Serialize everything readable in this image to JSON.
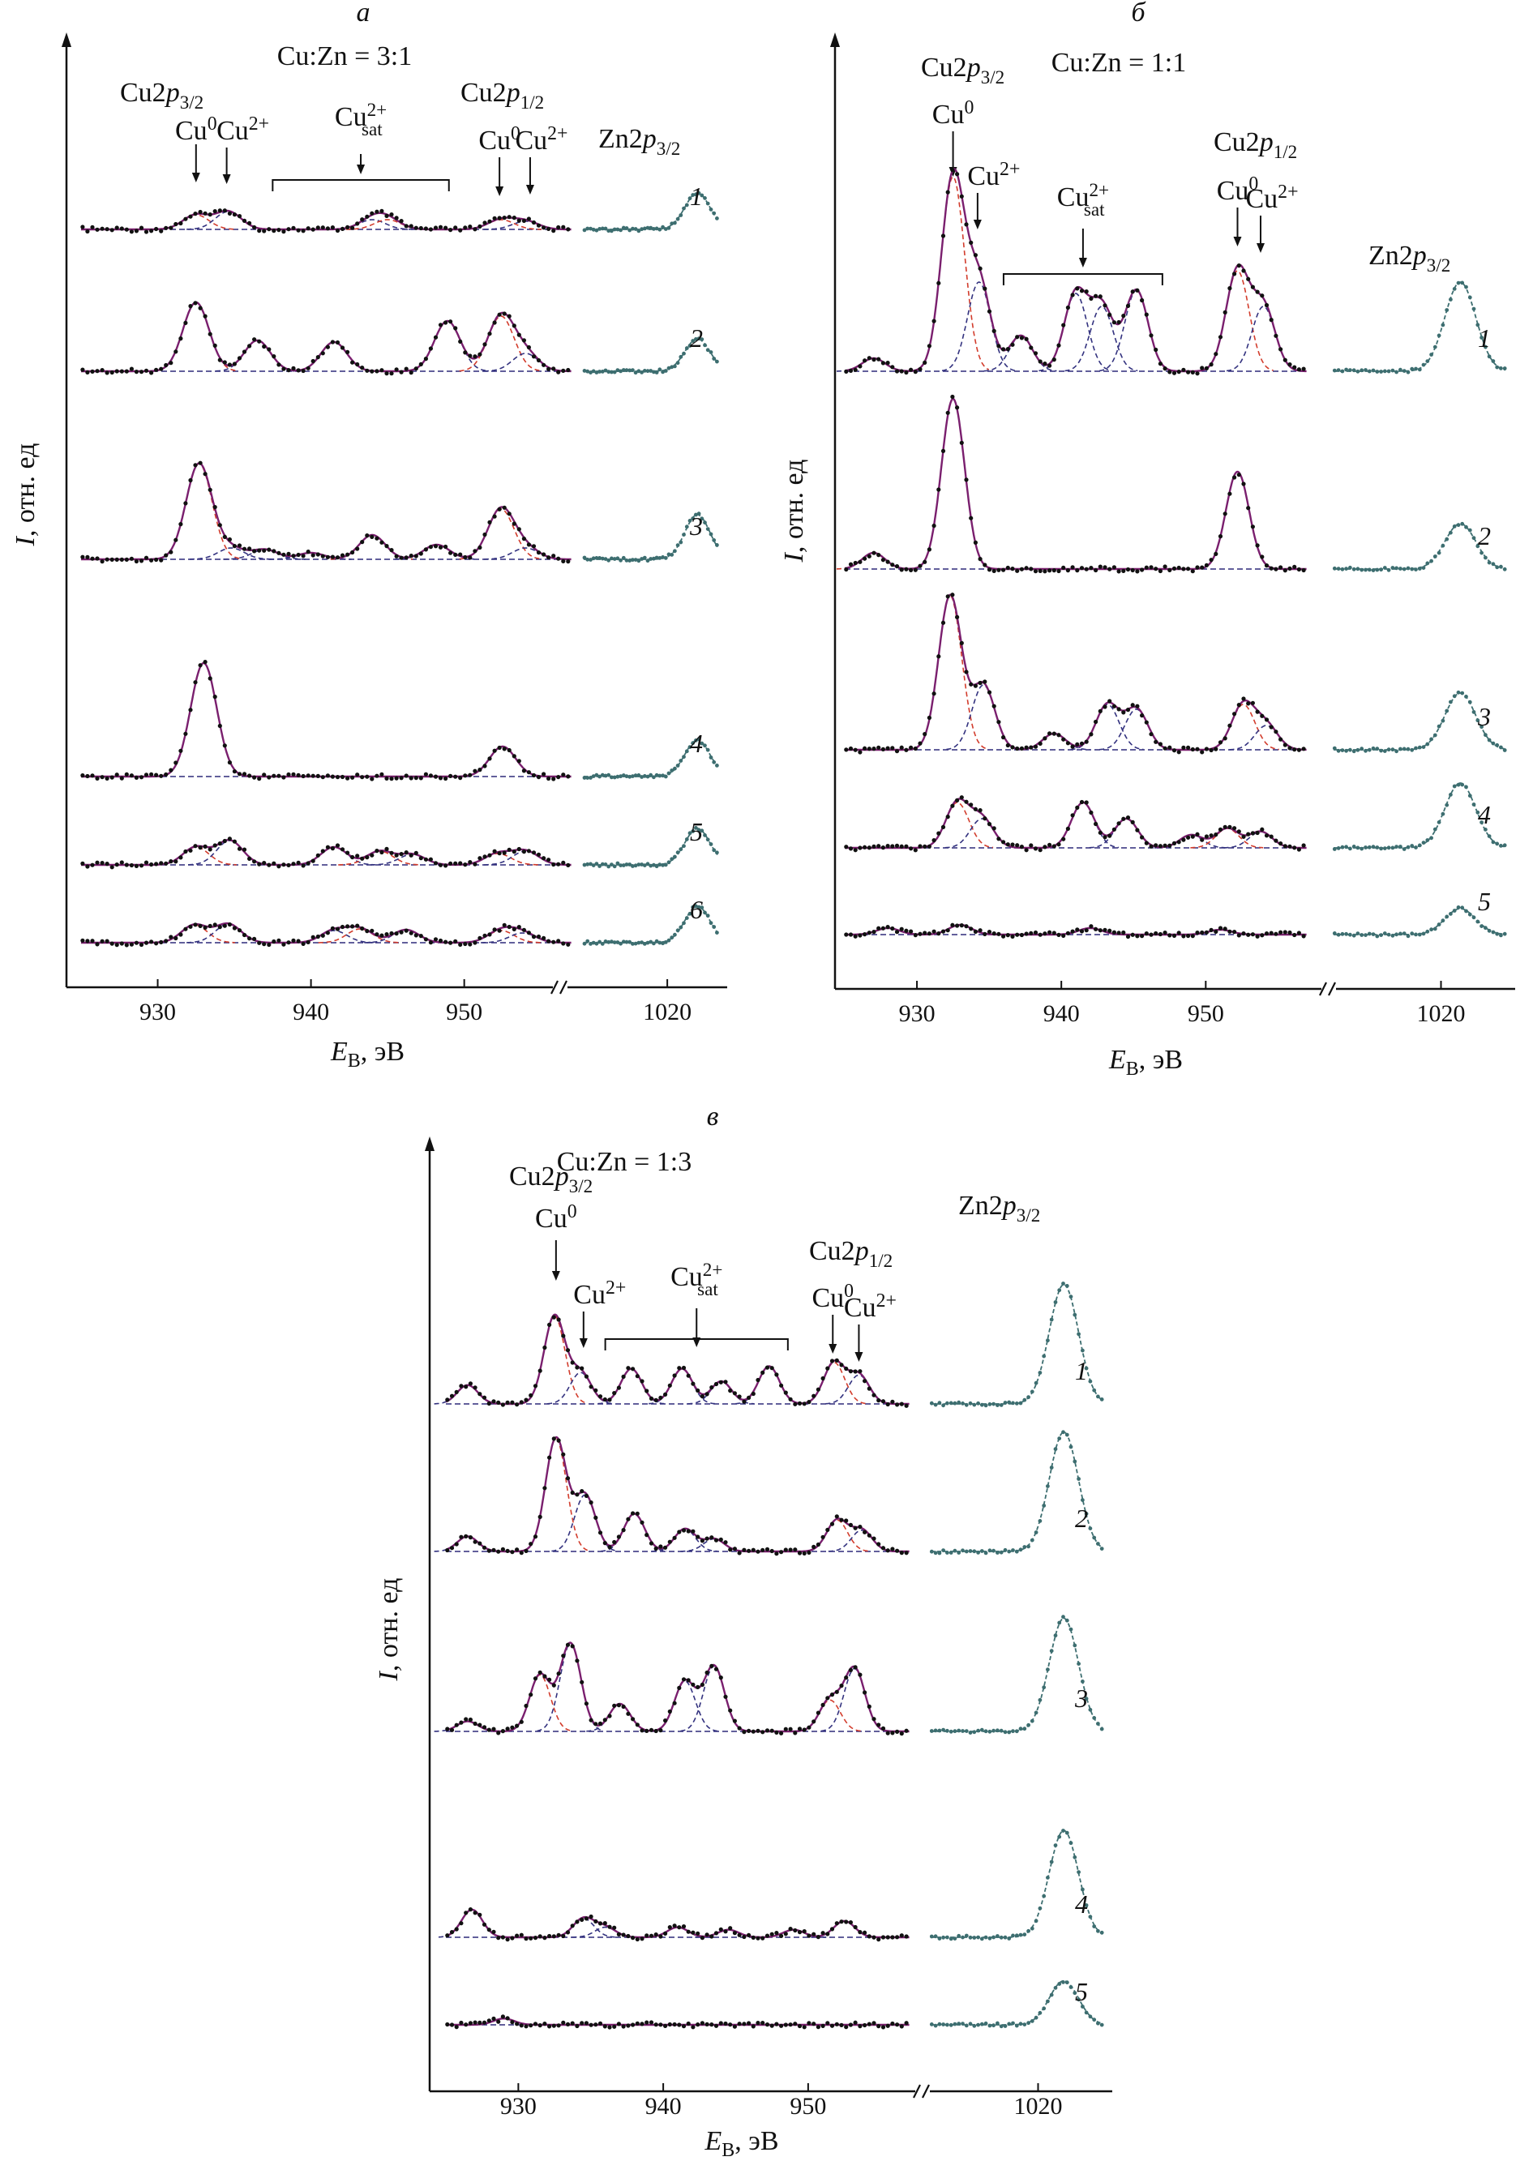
{
  "colors": {
    "axis": "#111111",
    "points_cu": "#111111",
    "points_zn": "#3d6e70",
    "fit_total": "#7a1f6e",
    "component_cu0": "#d23c2c",
    "component_cu2": "#33327f",
    "baseline": "#2e2a7a"
  },
  "chart_data": [
    {
      "id": "a",
      "type": "line",
      "panel_letter": "а",
      "title": "Cu:Zn = 3:1",
      "xlabel": "E_B, эВ",
      "ylabel": "I, отн. ед",
      "x_ticks": [
        930,
        940,
        950,
        1020
      ],
      "cu_range": [
        925,
        957
      ],
      "zn_range": [
        1015,
        1023
      ],
      "peak_labels": {
        "cu2p32": "Cu2p3/2",
        "cu2p12": "Cu2p1/2",
        "zn2p32": "Zn2p3/2",
        "cu0": "Cu0",
        "cu2": "Cu2+",
        "sat": "Cu2+sat"
      },
      "positions_eV": {
        "cu2p32_cu0": 932.5,
        "cu2p32_cu2": 934.5,
        "sat_range": [
          937.5,
          949.0
        ],
        "cu2p12_cu0": 952.3,
        "cu2p12_cu2": 954.3,
        "zn2p32": 1021.8
      },
      "series": [
        {
          "name": "1",
          "peaks": [
            {
              "pos": 932.5,
              "amp": 0.18,
              "comp": "cu0"
            },
            {
              "pos": 934.6,
              "amp": 0.22,
              "comp": "cu2"
            },
            {
              "pos": 944.0,
              "amp": 0.12,
              "comp": "cu2"
            },
            {
              "pos": 945.0,
              "amp": 0.12,
              "comp": "cu0"
            },
            {
              "pos": 952.4,
              "amp": 0.12,
              "comp": "cu0"
            },
            {
              "pos": 954.0,
              "amp": 0.1,
              "comp": "cu2"
            }
          ],
          "zn_amp": 0.45
        },
        {
          "name": "2",
          "peaks": [
            {
              "pos": 932.5,
              "amp": 0.85,
              "comp": "cu0"
            },
            {
              "pos": 936.5,
              "amp": 0.38,
              "comp": "cu2"
            },
            {
              "pos": 941.5,
              "amp": 0.36,
              "comp": "cu2"
            },
            {
              "pos": 948.9,
              "amp": 0.62,
              "comp": "cu2"
            },
            {
              "pos": 952.4,
              "amp": 0.68,
              "comp": "cu0"
            },
            {
              "pos": 954.0,
              "amp": 0.22,
              "comp": "cu2"
            }
          ],
          "zn_amp": 0.4
        },
        {
          "name": "3",
          "peaks": [
            {
              "pos": 932.7,
              "amp": 1.18,
              "comp": "cu0"
            },
            {
              "pos": 934.8,
              "amp": 0.14,
              "comp": "cu2"
            },
            {
              "pos": 937.0,
              "amp": 0.12,
              "comp": "cu2"
            },
            {
              "pos": 940.0,
              "amp": 0.08,
              "comp": "cu2"
            },
            {
              "pos": 944.0,
              "amp": 0.3,
              "comp": "cu0"
            },
            {
              "pos": 948.2,
              "amp": 0.18,
              "comp": "cu2"
            },
            {
              "pos": 952.4,
              "amp": 0.62,
              "comp": "cu0"
            },
            {
              "pos": 954.0,
              "amp": 0.14,
              "comp": "cu2"
            }
          ],
          "zn_amp": 0.55
        },
        {
          "name": "4",
          "peaks": [
            {
              "pos": 933.0,
              "amp": 1.4,
              "comp": "cu0"
            },
            {
              "pos": 952.5,
              "amp": 0.37,
              "comp": "cu0"
            }
          ],
          "zn_amp": 0.45
        },
        {
          "name": "5",
          "peaks": [
            {
              "pos": 932.5,
              "amp": 0.22,
              "comp": "cu0"
            },
            {
              "pos": 934.7,
              "amp": 0.3,
              "comp": "cu2"
            },
            {
              "pos": 941.5,
              "amp": 0.22,
              "comp": "cu2"
            },
            {
              "pos": 944.5,
              "amp": 0.17,
              "comp": "cu0"
            },
            {
              "pos": 946.6,
              "amp": 0.13,
              "comp": "cu2"
            },
            {
              "pos": 952.2,
              "amp": 0.14,
              "comp": "cu0"
            },
            {
              "pos": 954.0,
              "amp": 0.17,
              "comp": "cu2"
            }
          ],
          "zn_amp": 0.45
        },
        {
          "name": "6",
          "peaks": [
            {
              "pos": 932.4,
              "amp": 0.22,
              "comp": "cu0"
            },
            {
              "pos": 934.6,
              "amp": 0.23,
              "comp": "cu2"
            },
            {
              "pos": 941.5,
              "amp": 0.15,
              "comp": "cu2"
            },
            {
              "pos": 943.2,
              "amp": 0.17,
              "comp": "cu0"
            },
            {
              "pos": 946.2,
              "amp": 0.16,
              "comp": "cu2"
            },
            {
              "pos": 952.4,
              "amp": 0.15,
              "comp": "cu0"
            },
            {
              "pos": 953.8,
              "amp": 0.12,
              "comp": "cu2"
            }
          ],
          "zn_amp": 0.45
        }
      ]
    },
    {
      "id": "b",
      "type": "line",
      "panel_letter": "б",
      "title": "Cu:Zn = 1:1",
      "xlabel": "E_B, эВ",
      "ylabel": "I, отн. ед",
      "x_ticks": [
        930,
        940,
        950,
        1020
      ],
      "cu_range": [
        925,
        957
      ],
      "zn_range": [
        1015,
        1023
      ],
      "peak_labels": {
        "cu2p32": "Cu2p3/2",
        "cu2p12": "Cu2p1/2",
        "zn2p32": "Zn2p3/2",
        "cu0": "Cu0",
        "cu2": "Cu2+",
        "sat": "Cu2+sat"
      },
      "positions_eV": {
        "cu2p32_cu0": 932.5,
        "cu2p32_cu2": 934.2,
        "sat_range": [
          936.0,
          947.0
        ],
        "cu2p12_cu0": 952.2,
        "cu2p12_cu2": 953.8,
        "zn2p32": 1020.9
      },
      "series": [
        {
          "name": "1",
          "peaks": [
            {
              "pos": 927.0,
              "amp": 0.08,
              "comp": "cu2"
            },
            {
              "pos": 932.5,
              "amp": 1.2,
              "comp": "cu0"
            },
            {
              "pos": 934.3,
              "amp": 0.55,
              "comp": "cu2"
            },
            {
              "pos": 937.2,
              "amp": 0.22,
              "comp": "cu2"
            },
            {
              "pos": 941.0,
              "amp": 0.48,
              "comp": "cu2"
            },
            {
              "pos": 942.8,
              "amp": 0.4,
              "comp": "cu2"
            },
            {
              "pos": 945.2,
              "amp": 0.5,
              "comp": "cu2"
            },
            {
              "pos": 952.2,
              "amp": 0.62,
              "comp": "cu0"
            },
            {
              "pos": 954.0,
              "amp": 0.4,
              "comp": "cu2"
            }
          ],
          "zn_amp": 0.55
        },
        {
          "name": "2",
          "peaks": [
            {
              "pos": 927.0,
              "amp": 0.1,
              "comp": "cu0"
            },
            {
              "pos": 932.5,
              "amp": 1.05,
              "comp": "cu0"
            },
            {
              "pos": 952.2,
              "amp": 0.6,
              "comp": "cu0"
            }
          ],
          "zn_amp": 0.28
        },
        {
          "name": "3",
          "peaks": [
            {
              "pos": 932.3,
              "amp": 0.95,
              "comp": "cu0"
            },
            {
              "pos": 934.6,
              "amp": 0.4,
              "comp": "cu2"
            },
            {
              "pos": 939.5,
              "amp": 0.1,
              "comp": "cu2"
            },
            {
              "pos": 943.2,
              "amp": 0.28,
              "comp": "cu2"
            },
            {
              "pos": 945.2,
              "amp": 0.25,
              "comp": "cu2"
            },
            {
              "pos": 952.6,
              "amp": 0.28,
              "comp": "cu0"
            },
            {
              "pos": 954.2,
              "amp": 0.15,
              "comp": "cu2"
            }
          ],
          "zn_amp": 0.35
        },
        {
          "name": "4",
          "peaks": [
            {
              "pos": 932.8,
              "amp": 0.28,
              "comp": "cu0"
            },
            {
              "pos": 934.5,
              "amp": 0.18,
              "comp": "cu2"
            },
            {
              "pos": 941.5,
              "amp": 0.28,
              "comp": "cu2"
            },
            {
              "pos": 944.5,
              "amp": 0.18,
              "comp": "cu2"
            },
            {
              "pos": 949.0,
              "amp": 0.08,
              "comp": "cu2"
            },
            {
              "pos": 951.5,
              "amp": 0.12,
              "comp": "cu0"
            },
            {
              "pos": 953.8,
              "amp": 0.1,
              "comp": "cu2"
            }
          ],
          "zn_amp": 0.4
        },
        {
          "name": "5",
          "peaks": [
            {
              "pos": 928.0,
              "amp": 0.04,
              "comp": "cu2"
            },
            {
              "pos": 933.0,
              "amp": 0.06,
              "comp": "cu2"
            },
            {
              "pos": 942.0,
              "amp": 0.04,
              "comp": "cu2"
            },
            {
              "pos": 951.0,
              "amp": 0.03,
              "comp": "cu2"
            }
          ],
          "zn_amp": 0.16
        }
      ]
    },
    {
      "id": "c",
      "type": "line",
      "panel_letter": "в",
      "title": "Cu:Zn = 1:3",
      "xlabel": "E_B, эВ",
      "ylabel": "I, отн. ед",
      "x_ticks": [
        930,
        940,
        950,
        1020
      ],
      "cu_range": [
        925,
        957
      ],
      "zn_range": [
        1015,
        1023
      ],
      "peak_labels": {
        "cu2p32": "Cu2p3/2",
        "cu2p12": "Cu2p1/2",
        "zn2p32": "Zn2p3/2",
        "cu0": "Cu0",
        "cu2": "Cu2+",
        "sat": "Cu2+sat"
      },
      "positions_eV": {
        "cu2p32_cu0": 932.6,
        "cu2p32_cu2": 934.5,
        "sat_range": [
          936.0,
          948.6
        ],
        "cu2p12_cu0": 951.7,
        "cu2p12_cu2": 953.5,
        "zn2p32": 1021.2
      },
      "series": [
        {
          "name": "1",
          "peaks": [
            {
              "pos": 926.5,
              "amp": 0.15,
              "comp": "cu2"
            },
            {
              "pos": 932.5,
              "amp": 0.7,
              "comp": "cu0"
            },
            {
              "pos": 934.3,
              "amp": 0.25,
              "comp": "cu2"
            },
            {
              "pos": 937.8,
              "amp": 0.28,
              "comp": "cu2"
            },
            {
              "pos": 941.3,
              "amp": 0.28,
              "comp": "cu2"
            },
            {
              "pos": 944.0,
              "amp": 0.18,
              "comp": "cu2"
            },
            {
              "pos": 947.3,
              "amp": 0.3,
              "comp": "cu2"
            },
            {
              "pos": 951.8,
              "amp": 0.33,
              "comp": "cu0"
            },
            {
              "pos": 953.5,
              "amp": 0.23,
              "comp": "cu2"
            }
          ],
          "zn_amp": 0.95
        },
        {
          "name": "2",
          "peaks": [
            {
              "pos": 926.5,
              "amp": 0.12,
              "comp": "cu2"
            },
            {
              "pos": 932.6,
              "amp": 0.9,
              "comp": "cu0"
            },
            {
              "pos": 934.6,
              "amp": 0.45,
              "comp": "cu2"
            },
            {
              "pos": 938.0,
              "amp": 0.3,
              "comp": "cu2"
            },
            {
              "pos": 941.5,
              "amp": 0.18,
              "comp": "cu2"
            },
            {
              "pos": 943.5,
              "amp": 0.1,
              "comp": "cu2"
            },
            {
              "pos": 952.0,
              "amp": 0.25,
              "comp": "cu0"
            },
            {
              "pos": 953.7,
              "amp": 0.17,
              "comp": "cu2"
            }
          ],
          "zn_amp": 0.95
        },
        {
          "name": "3",
          "peaks": [
            {
              "pos": 926.5,
              "amp": 0.08,
              "comp": "cu2"
            },
            {
              "pos": 931.5,
              "amp": 0.45,
              "comp": "cu0"
            },
            {
              "pos": 933.6,
              "amp": 0.7,
              "comp": "cu2"
            },
            {
              "pos": 937.0,
              "amp": 0.22,
              "comp": "cu2"
            },
            {
              "pos": 941.5,
              "amp": 0.4,
              "comp": "cu2"
            },
            {
              "pos": 943.5,
              "amp": 0.52,
              "comp": "cu2"
            },
            {
              "pos": 951.5,
              "amp": 0.25,
              "comp": "cu0"
            },
            {
              "pos": 953.2,
              "amp": 0.5,
              "comp": "cu2"
            }
          ],
          "zn_amp": 0.9
        },
        {
          "name": "4",
          "peaks": [
            {
              "pos": 926.8,
              "amp": 0.22,
              "comp": "cu2"
            },
            {
              "pos": 934.5,
              "amp": 0.15,
              "comp": "cu2"
            },
            {
              "pos": 936.0,
              "amp": 0.08,
              "comp": "cu2"
            },
            {
              "pos": 941.0,
              "amp": 0.08,
              "comp": "cu2"
            },
            {
              "pos": 944.5,
              "amp": 0.06,
              "comp": "cu2"
            },
            {
              "pos": 949.0,
              "amp": 0.06,
              "comp": "cu2"
            },
            {
              "pos": 952.5,
              "amp": 0.13,
              "comp": "cu2"
            }
          ],
          "zn_amp": 0.85
        },
        {
          "name": "5",
          "peaks": [
            {
              "pos": 929.0,
              "amp": 0.05,
              "comp": "cu2"
            }
          ],
          "zn_amp": 0.35
        }
      ]
    }
  ]
}
